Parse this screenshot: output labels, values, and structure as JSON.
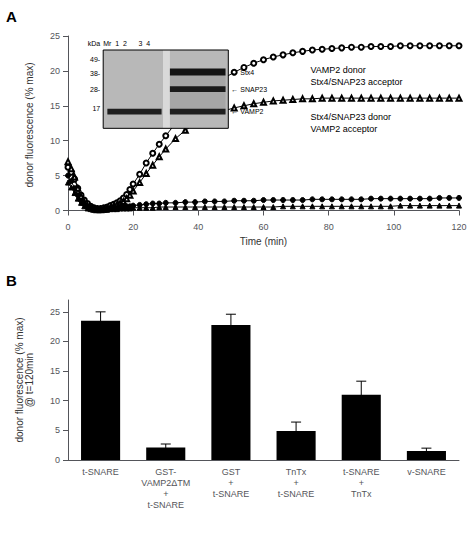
{
  "chart_data": [
    {
      "type": "line",
      "title": "A",
      "xlabel": "Time (min)",
      "ylabel": "donor fluorescence (% max)",
      "xlim": [
        0,
        120
      ],
      "ylim": [
        -0.5,
        25
      ],
      "xticks": [
        0,
        20,
        40,
        60,
        80,
        100,
        120
      ],
      "yticks": [
        0,
        5,
        10,
        15,
        20,
        25
      ],
      "grid": false,
      "x": [
        0,
        1,
        2,
        3,
        4,
        5,
        6,
        7,
        8,
        9,
        10,
        11,
        12,
        13,
        14,
        15,
        16,
        17,
        18,
        19,
        20,
        22,
        24,
        26,
        28,
        30,
        33,
        36,
        39,
        42,
        45,
        48,
        51,
        54,
        57,
        60,
        63,
        66,
        69,
        72,
        75,
        78,
        81,
        84,
        87,
        90,
        93,
        96,
        99,
        102,
        105,
        108,
        111,
        114,
        117,
        120
      ],
      "series": [
        {
          "color": "#000000",
          "marker": "circle-open",
          "values": [
            6.2,
            5.5,
            4.5,
            3.2,
            2.2,
            1.5,
            1.0,
            0.6,
            0.4,
            0.3,
            0.3,
            0.4,
            0.5,
            0.7,
            0.9,
            1.1,
            1.4,
            1.8,
            2.3,
            3.0,
            3.8,
            5.2,
            6.8,
            8.2,
            9.5,
            10.7,
            12.5,
            14.0,
            15.5,
            16.8,
            18.0,
            19.0,
            19.8,
            20.5,
            21.1,
            21.6,
            22.0,
            22.3,
            22.6,
            22.8,
            23.0,
            23.1,
            23.2,
            23.3,
            23.4,
            23.4,
            23.5,
            23.5,
            23.5,
            23.6,
            23.6,
            23.6,
            23.6,
            23.6,
            23.6,
            23.6
          ]
        },
        {
          "color": "#000000",
          "marker": "triangle-open",
          "values": [
            7.0,
            6.0,
            4.8,
            3.2,
            2.0,
            1.2,
            0.7,
            0.4,
            0.2,
            0.1,
            0.1,
            0.2,
            0.3,
            0.4,
            0.6,
            0.8,
            1.0,
            1.3,
            1.7,
            2.2,
            2.8,
            4.0,
            5.3,
            6.5,
            7.7,
            8.8,
            10.3,
            11.5,
            12.4,
            13.2,
            13.8,
            14.3,
            14.7,
            15.0,
            15.3,
            15.5,
            15.7,
            15.8,
            15.9,
            16.0,
            16.0,
            16.1,
            16.1,
            16.1,
            16.1,
            16.1,
            16.1,
            16.1,
            16.1,
            16.1,
            16.1,
            16.1,
            16.1,
            16.1,
            16.1,
            16.1
          ]
        },
        {
          "color": "#000000",
          "marker": "circle",
          "values": [
            5.0,
            4.2,
            3.2,
            2.2,
            1.4,
            0.9,
            0.5,
            0.3,
            0.2,
            0.2,
            0.2,
            0.2,
            0.3,
            0.3,
            0.4,
            0.4,
            0.5,
            0.5,
            0.6,
            0.6,
            0.7,
            0.8,
            0.9,
            1.0,
            1.0,
            1.1,
            1.1,
            1.2,
            1.2,
            1.3,
            1.3,
            1.3,
            1.4,
            1.4,
            1.4,
            1.5,
            1.5,
            1.5,
            1.5,
            1.5,
            1.6,
            1.6,
            1.6,
            1.6,
            1.6,
            1.6,
            1.7,
            1.7,
            1.7,
            1.7,
            1.7,
            1.7,
            1.7,
            1.8,
            1.8,
            1.8
          ]
        },
        {
          "color": "#000000",
          "marker": "triangle",
          "values": [
            4.0,
            3.3,
            2.5,
            1.7,
            1.1,
            0.6,
            0.3,
            0.2,
            0.1,
            0.1,
            0.1,
            0.1,
            0.1,
            0.2,
            0.2,
            0.2,
            0.3,
            0.3,
            0.3,
            0.3,
            0.4,
            0.4,
            0.4,
            0.4,
            0.5,
            0.5,
            0.5,
            0.5,
            0.5,
            0.5,
            0.5,
            0.5,
            0.5,
            0.5,
            0.5,
            0.5,
            0.5,
            0.6,
            0.6,
            0.6,
            0.6,
            0.6,
            0.6,
            0.6,
            0.6,
            0.6,
            0.6,
            0.6,
            0.6,
            0.7,
            0.7,
            0.7,
            0.7,
            0.7,
            0.7,
            0.7
          ]
        }
      ],
      "annotations": [
        "VAMP2 donor\nStx4/SNAP23 acceptor",
        "Stx4/SNAP23 donor\nVAMP2 acceptor"
      ],
      "inset": {
        "title": "Mr  1  2      3  4",
        "size_labels": [
          "kDa",
          "49-",
          "38-",
          "28-",
          "17"
        ],
        "band_labels": [
          "← Stx4",
          "← SNAP23",
          "← VAMP2"
        ]
      }
    },
    {
      "type": "bar",
      "title": "B",
      "ylabel": "donor fluorescence (% max)\n@ t=120min",
      "categories": [
        "t-SNARE",
        "GST-\nVAMP2ΔTM\n+\nt-SNARE",
        "GST\n+\nt-SNARE",
        "TnTx\n+\nt-SNARE",
        "t-SNARE\n+\nTnTx",
        "v-SNARE"
      ],
      "values": [
        23.5,
        2.1,
        22.8,
        4.9,
        11.0,
        1.5
      ],
      "errors": [
        1.5,
        0.6,
        1.8,
        1.5,
        2.3,
        0.5
      ],
      "color": "#000000",
      "ylim": [
        0,
        27
      ],
      "yticks": [
        0,
        5,
        10,
        15,
        20,
        25
      ],
      "grid": false
    }
  ]
}
